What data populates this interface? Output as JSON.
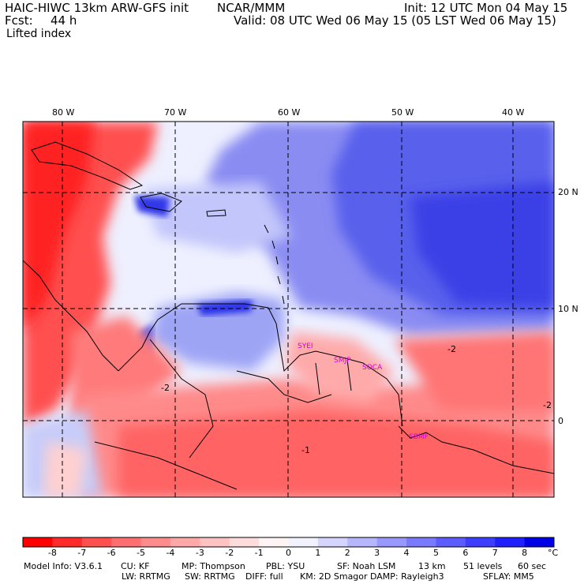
{
  "header": {
    "title_left": "HAIC-HIWC 13km ARW-GFS init",
    "org": "NCAR/MMM",
    "init": "Init: 12 UTC Mon 04 May 15",
    "fcst_label": "Fcst:",
    "fcst_value": "44 h",
    "valid": "Valid: 08 UTC Wed 06 May 15 (05 LST Wed 06 May 15)",
    "field": "Lifted index"
  },
  "map": {
    "lon_labels": [
      "80 W",
      "70 W",
      "60 W",
      "50 W",
      "40 W"
    ],
    "lat_labels": [
      "20 N",
      "10 N",
      "0"
    ],
    "stations": [
      "SYEI",
      "SMJP",
      "SOCA",
      "SBMF"
    ],
    "contour_labels": [
      "-2",
      "-2",
      "-2",
      "-1"
    ]
  },
  "colorbar": {
    "labels": [
      "-8",
      "-7",
      "-6",
      "-5",
      "-4",
      "-3",
      "-2",
      "-1",
      "0",
      "1",
      "2",
      "3",
      "4",
      "5",
      "6",
      "7",
      "8"
    ],
    "unit": "°C",
    "colors": [
      "#ff0000",
      "#ff2a2a",
      "#ff4f4f",
      "#ff6f6f",
      "#ff8c8c",
      "#ffa8a8",
      "#ffc2c2",
      "#ffdcdc",
      "#fff4f4",
      "#f2f2ff",
      "#d4d4ff",
      "#b6b6ff",
      "#9898ff",
      "#7a7aff",
      "#5c5cff",
      "#3e3eff",
      "#2020ff",
      "#0000e6"
    ]
  },
  "model_info": {
    "line1": [
      {
        "label": "Model Info: V3.6.1"
      },
      {
        "label": "CU: KF"
      },
      {
        "label": "MP: Thompson"
      },
      {
        "label": "PBL: YSU"
      },
      {
        "label": "SF: Noah LSM"
      },
      {
        "label": "13 km"
      },
      {
        "label": "51 levels"
      },
      {
        "label": "60 sec"
      }
    ],
    "line2": [
      {
        "label": "LW: RRTMG"
      },
      {
        "label": "SW: RRTMG"
      },
      {
        "label": "DIFF: full"
      },
      {
        "label": "KM: 2D Smagor"
      },
      {
        "label": "DAMP: Rayleigh3"
      },
      {
        "label": "SFLAY: MM5"
      }
    ]
  }
}
